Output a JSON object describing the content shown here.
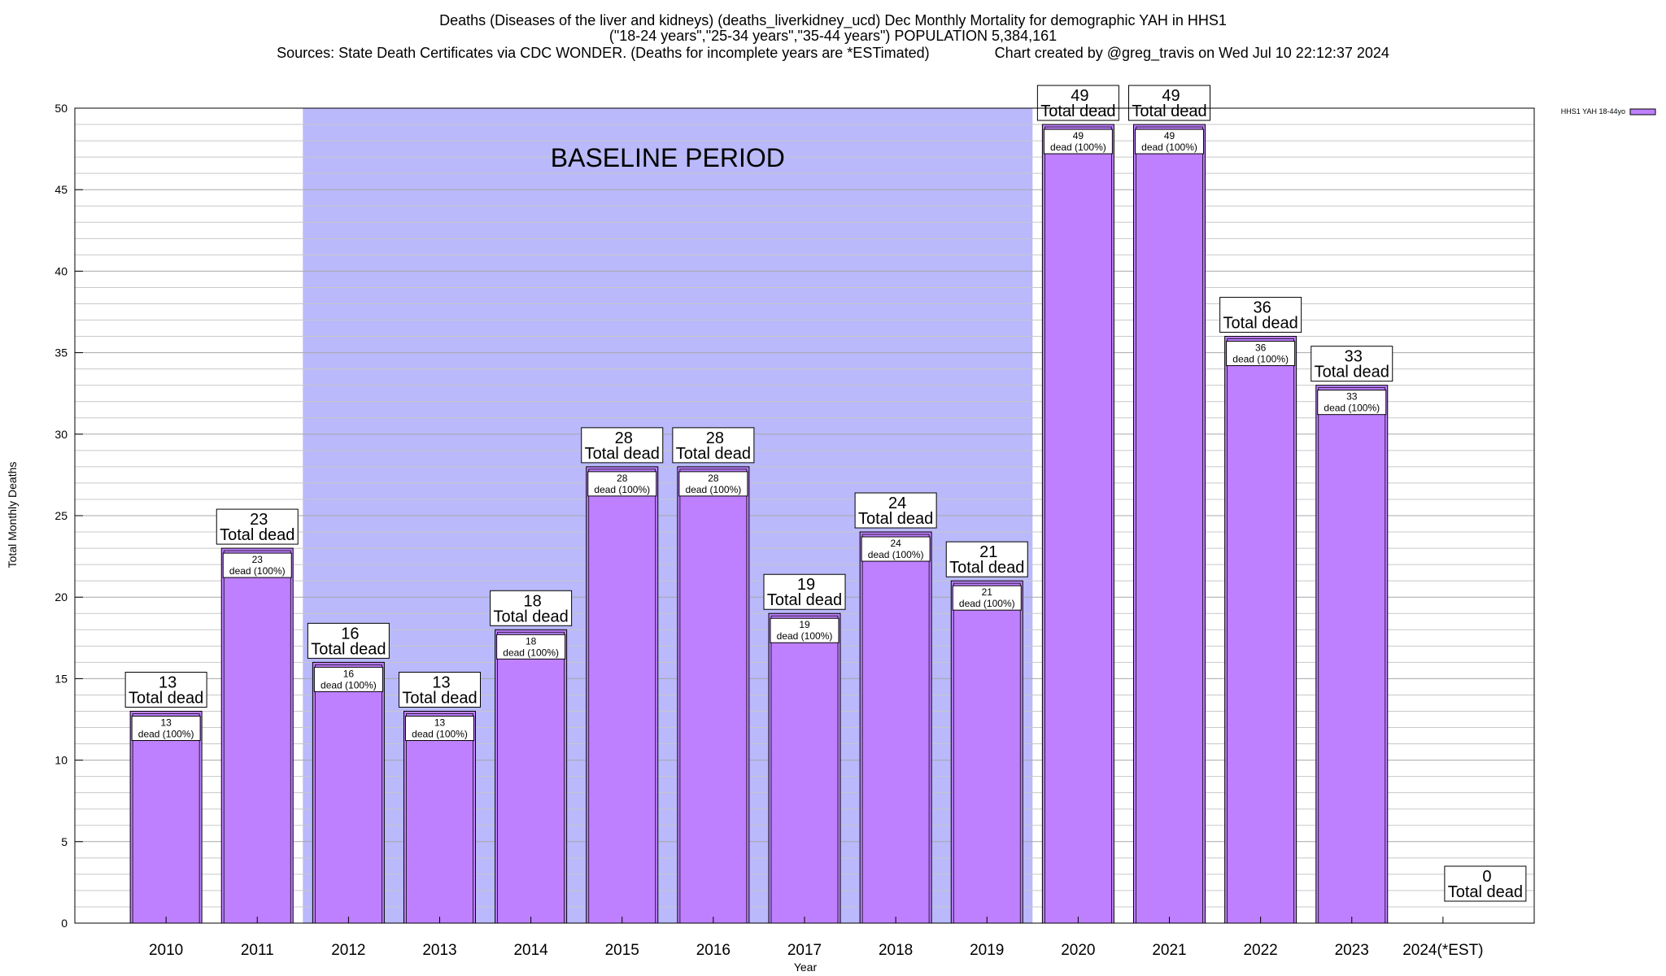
{
  "chart_data": {
    "type": "bar",
    "title_lines": [
      "Deaths (Diseases of the liver and kidneys) (deaths_liverkidney_ucd) Dec Monthly Mortality for demographic YAH in HHS1",
      "(\"18-24 years\",\"25-34 years\",\"35-44 years\") POPULATION 5,384,161",
      "Sources: State Death Certificates via CDC WONDER. (Deaths for incomplete years are *ESTimated)                Chart created by @greg_travis on Wed Jul 10 22:12:37 2024"
    ],
    "xlabel": "Year",
    "ylabel": "Total Monthly Deaths",
    "ylim": [
      0,
      50
    ],
    "yticks": [
      0,
      5,
      10,
      15,
      20,
      25,
      30,
      35,
      40,
      45,
      50
    ],
    "minor_grid_step": 1,
    "grid": true,
    "legend_position": "top-right",
    "categories": [
      "2010",
      "2011",
      "2012",
      "2013",
      "2014",
      "2015",
      "2016",
      "2017",
      "2018",
      "2019",
      "2020",
      "2021",
      "2022",
      "2023",
      "2024(*EST)"
    ],
    "series": [
      {
        "name": "HHS1 YAH 18-44yo",
        "color": "#bf80ff",
        "values": [
          13,
          23,
          16,
          13,
          18,
          28,
          28,
          19,
          24,
          21,
          49,
          49,
          36,
          33,
          0
        ]
      }
    ],
    "total_label_suffix": "Total dead",
    "inner_label_suffix": "dead (100%)",
    "baseline_region": {
      "label": "BASELINE PERIOD",
      "start_category": "2012",
      "end_category": "2019",
      "color": "#b9b9fb"
    }
  }
}
